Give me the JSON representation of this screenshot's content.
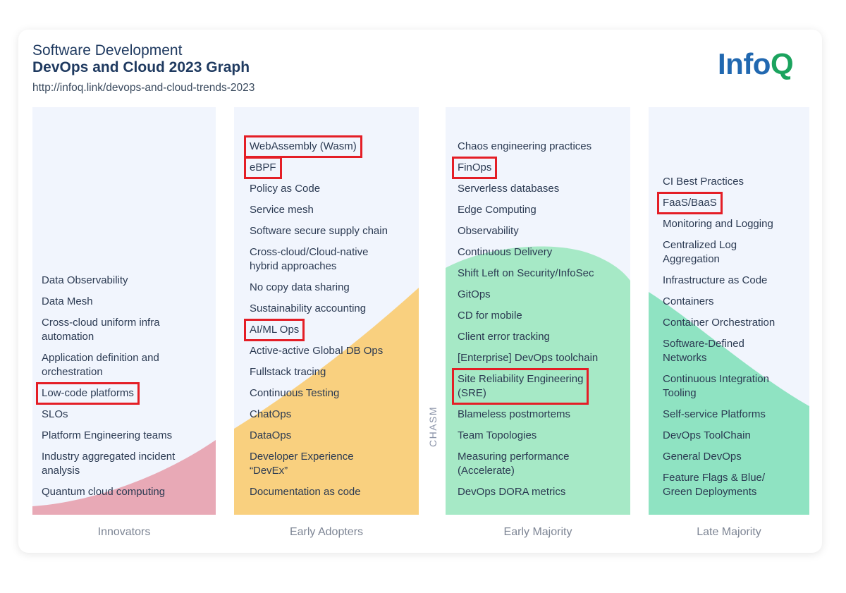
{
  "header": {
    "subtitle": "Software Development",
    "title": "DevOps and Cloud 2023 Graph",
    "url": "http://infoq.link/devops-and-cloud-trends-2023",
    "logo_part1": "Info",
    "logo_part2": "Q"
  },
  "chasm_label": "CHASM",
  "colors": {
    "innovators": "#e8a9b6",
    "early_adopters": "#f9d07f",
    "early_majority": "#a6e9c6",
    "late_majority": "#8fe3c2",
    "highlight": "#e41e26",
    "panel": "#f1f5fd"
  },
  "columns": {
    "innovators": {
      "footer": "Innovators",
      "items": [
        [
          "Data Observability"
        ],
        [
          "Data Mesh"
        ],
        [
          "Cross-cloud uniform infra",
          "automation"
        ],
        [
          "Application definition and",
          "orchestration"
        ],
        [
          "Low-code platforms"
        ],
        [
          "SLOs"
        ],
        [
          "Platform Engineering teams"
        ],
        [
          "Industry aggregated incident",
          "analysis"
        ],
        [
          "Quantum cloud computing"
        ]
      ],
      "highlighted": [
        "Low-code platforms"
      ]
    },
    "early_adopters": {
      "footer": "Early Adopters",
      "items": [
        [
          "WebAssembly (Wasm)"
        ],
        [
          "eBPF"
        ],
        [
          "Policy as Code"
        ],
        [
          "Service mesh"
        ],
        [
          "Software secure supply chain"
        ],
        [
          "Cross-cloud/Cloud-native",
          "hybrid approaches"
        ],
        [
          "No copy data sharing"
        ],
        [
          "Sustainability accounting"
        ],
        [
          "AI/ML Ops"
        ],
        [
          "Active-active Global DB Ops"
        ],
        [
          "Fullstack tracing"
        ],
        [
          "Continuous Testing"
        ],
        [
          "ChatOps"
        ],
        [
          "DataOps"
        ],
        [
          "Developer Experience",
          "“DevEx”"
        ],
        [
          "Documentation as code"
        ]
      ],
      "highlighted": [
        "WebAssembly (Wasm)",
        "eBPF",
        "AI/ML Ops"
      ]
    },
    "early_majority": {
      "footer": "Early Majority",
      "items": [
        [
          "Chaos engineering practices"
        ],
        [
          "FinOps"
        ],
        [
          "Serverless databases"
        ],
        [
          "Edge Computing"
        ],
        [
          "Observability"
        ],
        [
          "Continuous Delivery"
        ],
        [
          "Shift Left on Security/InfoSec"
        ],
        [
          "GitOps"
        ],
        [
          "CD for mobile"
        ],
        [
          "Client error tracking"
        ],
        [
          "[Enterprise] DevOps toolchain"
        ],
        [
          "Site Reliability Engineering",
          "(SRE)"
        ],
        [
          "Blameless postmortems"
        ],
        [
          "Team Topologies"
        ],
        [
          "Measuring performance",
          "(Accelerate)"
        ],
        [
          "DevOps DORA metrics"
        ]
      ],
      "highlighted": [
        "FinOps",
        "Site Reliability Engineering"
      ]
    },
    "late_majority": {
      "footer": "Late Majority",
      "items": [
        [
          "CI Best Practices"
        ],
        [
          "FaaS/BaaS"
        ],
        [
          "Monitoring and Logging"
        ],
        [
          "Centralized Log",
          "Aggregation"
        ],
        [
          "Infrastructure as Code"
        ],
        [
          "Containers"
        ],
        [
          "Container Orchestration"
        ],
        [
          "Software-Defined",
          "Networks"
        ],
        [
          "Continuous Integration",
          "Tooling"
        ],
        [
          "Self-service Platforms"
        ],
        [
          "DevOps ToolChain"
        ],
        [
          "General DevOps"
        ],
        [
          "Feature Flags & Blue/",
          "Green Deployments"
        ]
      ],
      "highlighted": [
        "FaaS/BaaS"
      ]
    }
  }
}
